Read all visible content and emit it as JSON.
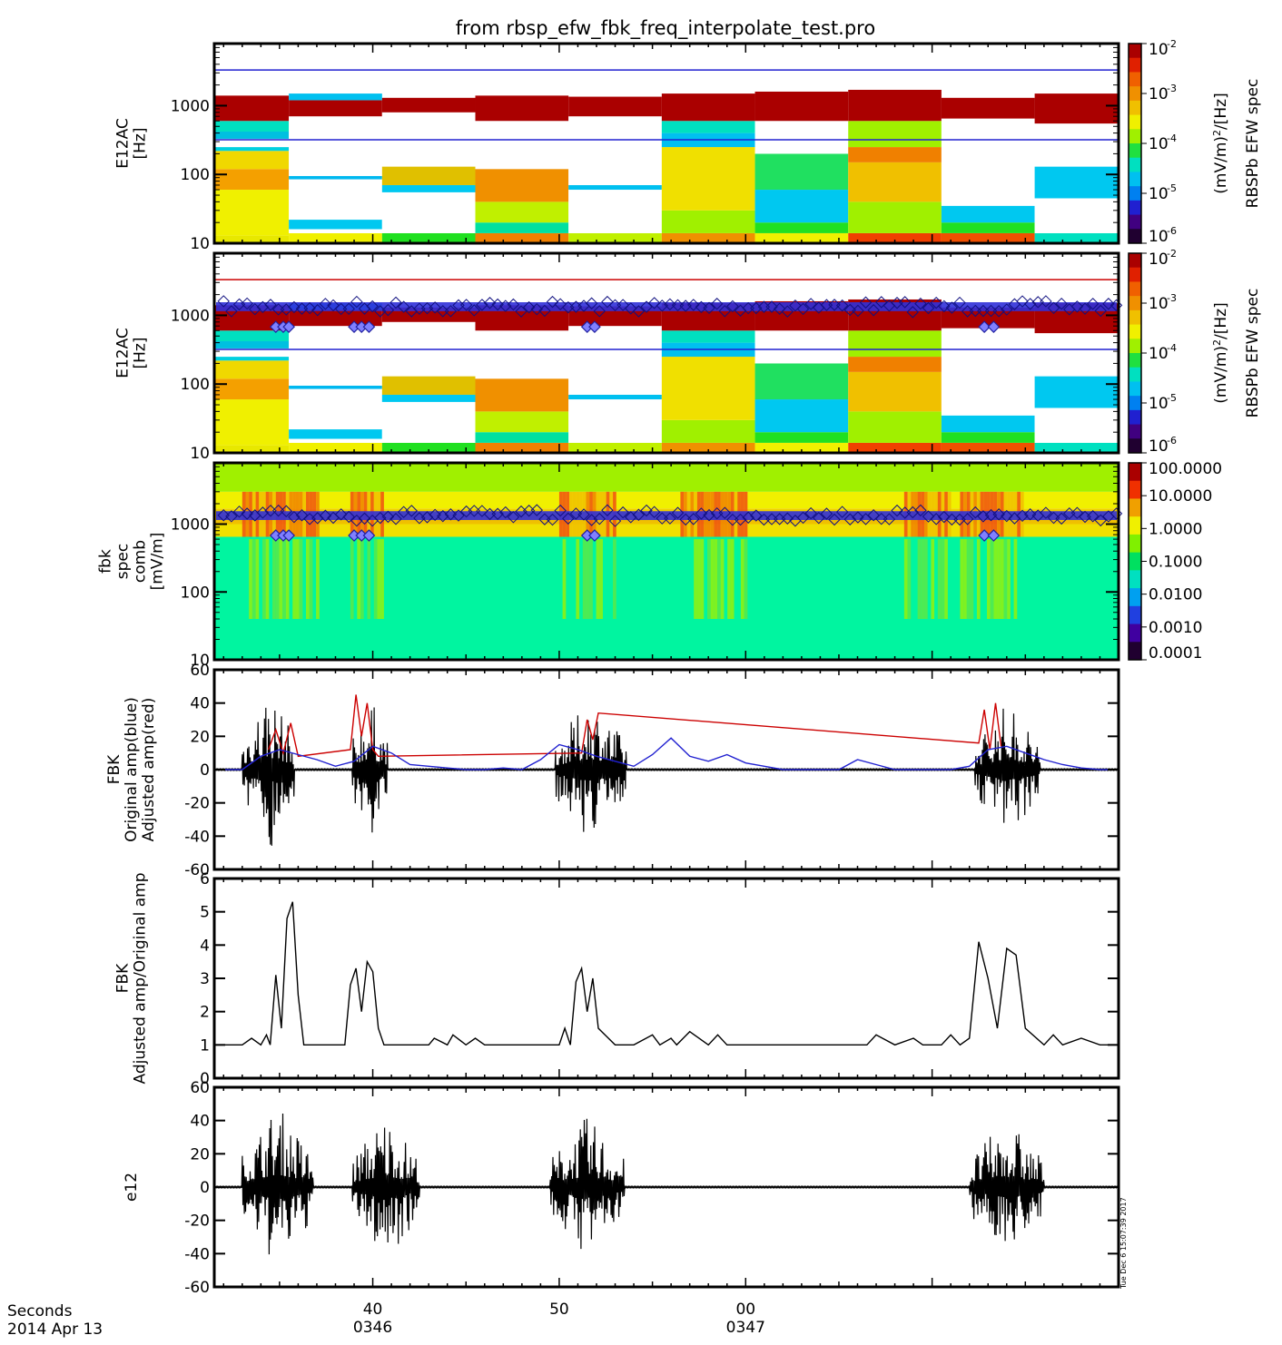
{
  "title": "from  rbsp_efw_fbk_freq_interpolate_test.pro",
  "timestamp_note": "Tue Dec  6 15:07:39 2017",
  "x_axis": {
    "units_label": "Seconds",
    "date_label": "2014 Apr 13",
    "ticks": [
      {
        "t": 40,
        "major": "40",
        "minor": "0346"
      },
      {
        "t": 50,
        "major": "50",
        "minor": ""
      },
      {
        "t": 60,
        "major": "00",
        "minor": "0347"
      }
    ],
    "range": [
      31.5,
      80.0
    ]
  },
  "colors": {
    "blue_line": "#2020d0",
    "red_line": "#cc0000",
    "black_line": "#000000",
    "fbk_background": "#00f5a0"
  },
  "colorbars": [
    {
      "label_parts": [
        "(mV/m)",
        "2",
        "/[Hz]"
      ],
      "title": "RBSPb EFW spec",
      "ticks": [
        "10",
        "10",
        "10",
        "10",
        "10"
      ],
      "exps": [
        "-2",
        "-3",
        "-4",
        "-5",
        "-6"
      ]
    },
    {
      "label_parts": [
        "(mV/m)",
        "2",
        "/[Hz]"
      ],
      "title": "RBSPb EFW spec",
      "ticks": [
        "10",
        "10",
        "10",
        "10",
        "10"
      ],
      "exps": [
        "-2",
        "-3",
        "-4",
        "-5",
        "-6"
      ]
    },
    {
      "ticks": [
        "100.0000",
        "10.0000",
        "1.0000",
        "0.1000",
        "0.0100",
        "0.0010",
        "0.0001"
      ]
    }
  ],
  "chart_data": [
    {
      "panel": 1,
      "type": "heatmap",
      "ylabel": [
        "E12AC",
        "[Hz]"
      ],
      "y_scale": "log",
      "ylim": [
        10,
        8000
      ],
      "y_ticks": [
        "1000",
        "100",
        "10"
      ],
      "columns": [
        {
          "t0": 31.5,
          "t1": 35.5,
          "bands": [
            [
              10,
              13,
              "#e8e800"
            ],
            [
              13,
              60,
              "#f0f000"
            ],
            [
              60,
              120,
              "#f4a000"
            ],
            [
              120,
              220,
              "#f0d800"
            ],
            [
              220,
              250,
              "#00d0e0"
            ],
            [
              250,
              330,
              "#ffffff"
            ],
            [
              330,
              420,
              "#00c0e0"
            ],
            [
              420,
              600,
              "#00e0c0"
            ],
            [
              600,
              1400,
              "#aa0000"
            ]
          ]
        },
        {
          "t0": 35.5,
          "t1": 40.5,
          "bands": [
            [
              10,
              14,
              "#f0f000"
            ],
            [
              14,
              16,
              "#ffffff"
            ],
            [
              16,
              22,
              "#00c8f0"
            ],
            [
              22,
              85,
              "#ffffff"
            ],
            [
              85,
              95,
              "#00b8f0"
            ],
            [
              95,
              320,
              "#ffffff"
            ],
            [
              320,
              700,
              "#ffffff"
            ],
            [
              700,
              1200,
              "#aa0000"
            ],
            [
              1200,
              1500,
              "#00c0f0"
            ]
          ]
        },
        {
          "t0": 40.5,
          "t1": 45.5,
          "bands": [
            [
              10,
              14,
              "#20e020"
            ],
            [
              14,
              55,
              "#ffffff"
            ],
            [
              55,
              70,
              "#00c8f0"
            ],
            [
              70,
              130,
              "#e0c000"
            ],
            [
              130,
              800,
              "#ffffff"
            ],
            [
              800,
              1300,
              "#aa0000"
            ]
          ]
        },
        {
          "t0": 45.5,
          "t1": 50.5,
          "bands": [
            [
              10,
              14,
              "#f08000"
            ],
            [
              14,
              20,
              "#00e0a0"
            ],
            [
              20,
              40,
              "#c0f000"
            ],
            [
              40,
              120,
              "#f09000"
            ],
            [
              120,
              600,
              "#ffffff"
            ],
            [
              600,
              1400,
              "#aa0000"
            ]
          ]
        },
        {
          "t0": 50.5,
          "t1": 55.5,
          "bands": [
            [
              10,
              14,
              "#c0f000"
            ],
            [
              14,
              60,
              "#ffffff"
            ],
            [
              60,
              70,
              "#00c0f0"
            ],
            [
              70,
              700,
              "#ffffff"
            ],
            [
              700,
              1350,
              "#aa0000"
            ]
          ]
        },
        {
          "t0": 55.5,
          "t1": 60.5,
          "bands": [
            [
              10,
              14,
              "#f09000"
            ],
            [
              14,
              30,
              "#a0f000"
            ],
            [
              30,
              250,
              "#f0e000"
            ],
            [
              250,
              400,
              "#00c0f0"
            ],
            [
              400,
              600,
              "#00e0c0"
            ],
            [
              600,
              1500,
              "#aa0000"
            ]
          ]
        },
        {
          "t0": 60.5,
          "t1": 65.5,
          "bands": [
            [
              10,
              14,
              "#f0f000"
            ],
            [
              14,
              20,
              "#20e020"
            ],
            [
              20,
              60,
              "#00c8f0"
            ],
            [
              60,
              200,
              "#20e060"
            ],
            [
              200,
              600,
              "#ffffff"
            ],
            [
              600,
              1600,
              "#aa0000"
            ]
          ]
        },
        {
          "t0": 65.5,
          "t1": 70.5,
          "bands": [
            [
              10,
              14,
              "#f04000"
            ],
            [
              14,
              40,
              "#a0f000"
            ],
            [
              40,
              150,
              "#f0c000"
            ],
            [
              150,
              250,
              "#f08000"
            ],
            [
              250,
              600,
              "#a0f000"
            ],
            [
              600,
              1700,
              "#aa0000"
            ]
          ]
        },
        {
          "t0": 70.5,
          "t1": 75.5,
          "bands": [
            [
              10,
              14,
              "#f05000"
            ],
            [
              14,
              20,
              "#20e020"
            ],
            [
              20,
              35,
              "#00c8f0"
            ],
            [
              35,
              650,
              "#ffffff"
            ],
            [
              650,
              1300,
              "#aa0000"
            ]
          ]
        },
        {
          "t0": 75.5,
          "t1": 80.0,
          "bands": [
            [
              10,
              14,
              "#00e0c0"
            ],
            [
              14,
              45,
              "#ffffff"
            ],
            [
              45,
              130,
              "#00c8f0"
            ],
            [
              130,
              550,
              "#ffffff"
            ],
            [
              550,
              1500,
              "#aa0000"
            ]
          ]
        }
      ],
      "overlay_lines": [
        {
          "y": 3300,
          "color": "#2020d0"
        },
        {
          "y": 320,
          "color": "#2020d0"
        }
      ]
    },
    {
      "panel": 2,
      "type": "heatmap",
      "ylabel": [
        "E12AC",
        "[Hz]"
      ],
      "y_scale": "log",
      "ylim": [
        10,
        8000
      ],
      "y_ticks": [
        "1000",
        "100",
        "10"
      ],
      "same_columns_as_panel": 1,
      "overlay_lines": [
        {
          "y": 3300,
          "color": "#cc0000"
        },
        {
          "y": 320,
          "color": "#2020d0"
        }
      ],
      "diamond_band": {
        "y_low": 1150,
        "y_high": 1550,
        "color": "#2020d0"
      },
      "diamond_low_times": [
        34.8,
        35.2,
        35.5,
        39.0,
        39.4,
        39.8,
        51.5,
        51.9,
        72.8,
        73.3
      ],
      "diamond_low_y": 680
    },
    {
      "panel": 3,
      "type": "heatmap",
      "ylabel": [
        "fbk",
        "spec",
        "comb",
        "[mV/m]"
      ],
      "y_scale": "log",
      "ylim": [
        10,
        8000
      ],
      "y_ticks": [
        "1000",
        "100",
        "10"
      ],
      "bands": [
        [
          10,
          650,
          "#00f5a0"
        ],
        [
          650,
          1000,
          "#f0e000"
        ],
        [
          1000,
          1400,
          "#f0c000"
        ],
        [
          1400,
          1700,
          "#f0d000"
        ],
        [
          1700,
          3000,
          "#f0f000"
        ],
        [
          3000,
          8000,
          "#a0f000"
        ]
      ],
      "active_intervals": [
        [
          33.0,
          37.0
        ],
        [
          38.8,
          40.5
        ],
        [
          50.0,
          53.0
        ],
        [
          56.5,
          60.0
        ],
        [
          68.5,
          71.0
        ],
        [
          71.5,
          74.8
        ]
      ]
    },
    {
      "panel": 4,
      "type": "line",
      "ylabel": [
        "FBK",
        "Original amp(blue)",
        "Adjusted amp(red)"
      ],
      "ylim": [
        -60,
        60
      ],
      "y_ticks": [
        "60",
        "40",
        "20",
        "0",
        "-20",
        "-40",
        "-60"
      ],
      "series": [
        {
          "color": "black",
          "bursts": [
            [
              33.0,
              35.8,
              50
            ],
            [
              38.9,
              40.8,
              45
            ],
            [
              49.8,
              53.6,
              43
            ],
            [
              72.3,
              75.8,
              42
            ]
          ]
        },
        {
          "color": "blue",
          "x": [
            31.5,
            33,
            34,
            35,
            36,
            37,
            38,
            39,
            40,
            41,
            42,
            43,
            44,
            45,
            46,
            47,
            48,
            49,
            50,
            51,
            52,
            53,
            54,
            55,
            56,
            57,
            58,
            59,
            60,
            61,
            62,
            63,
            64,
            65,
            66,
            67,
            68,
            69,
            70,
            71,
            72,
            73,
            74,
            75,
            76,
            77,
            78,
            79,
            80
          ],
          "y": [
            0,
            0,
            8,
            12,
            9,
            6,
            2,
            5,
            14,
            10,
            3,
            2,
            1,
            0,
            0,
            1,
            0,
            6,
            15,
            12,
            8,
            5,
            2,
            9,
            19,
            8,
            5,
            9,
            4,
            2,
            0,
            0,
            0,
            0,
            6,
            3,
            0,
            0,
            0,
            0,
            2,
            12,
            14,
            10,
            6,
            3,
            1,
            0,
            0
          ]
        },
        {
          "color": "red",
          "x": [
            34.4,
            34.8,
            35.2,
            35.6,
            36.0,
            38.8,
            39.1,
            39.4,
            39.7,
            40.0,
            40.3,
            51.2,
            51.5,
            51.8,
            52.1,
            72.5,
            72.8,
            73.1,
            73.4,
            73.7
          ],
          "y": [
            12,
            24,
            10,
            28,
            8,
            12,
            45,
            20,
            40,
            12,
            8,
            10,
            30,
            18,
            34,
            16,
            36,
            12,
            40,
            14
          ]
        }
      ]
    },
    {
      "panel": 5,
      "type": "line",
      "ylabel": [
        "FBK",
        "Adjusted amp/Original amp"
      ],
      "ylim": [
        0,
        6
      ],
      "y_ticks": [
        "6",
        "5",
        "4",
        "3",
        "2",
        "1",
        "0"
      ],
      "series": [
        {
          "color": "black",
          "x": [
            31.5,
            32.5,
            33.0,
            33.5,
            34.0,
            34.3,
            34.5,
            34.8,
            35.1,
            35.4,
            35.7,
            36.0,
            36.3,
            38.5,
            38.8,
            39.1,
            39.4,
            39.7,
            40.0,
            40.3,
            40.6,
            41.0,
            43.0,
            43.3,
            44.0,
            44.3,
            45.0,
            45.5,
            46.0,
            47.0,
            49.0,
            50.0,
            50.3,
            50.6,
            50.9,
            51.2,
            51.5,
            51.8,
            52.1,
            53.0,
            54.0,
            55.0,
            55.4,
            56.0,
            56.3,
            57.0,
            58.0,
            58.5,
            59.0,
            60.0,
            62.0,
            64.0,
            65.0,
            66.0,
            66.5,
            67.0,
            68.0,
            69.0,
            69.5,
            70.5,
            71.0,
            71.5,
            72.0,
            72.5,
            73.0,
            73.5,
            74.0,
            74.5,
            75.0,
            76.0,
            76.5,
            77.0,
            78.0,
            79.0,
            80.0
          ],
          "y": [
            1,
            1,
            1,
            1.2,
            1,
            1.3,
            1,
            3.1,
            1.5,
            4.8,
            5.3,
            2.5,
            1,
            1,
            2.8,
            3.3,
            2.0,
            3.5,
            3.2,
            1.5,
            1,
            1,
            1,
            1.2,
            1,
            1.3,
            1,
            1.2,
            1,
            1,
            1,
            1,
            1.5,
            1,
            2.9,
            3.3,
            2.0,
            3.0,
            1.5,
            1,
            1,
            1.3,
            1,
            1.2,
            1,
            1.4,
            1,
            1.3,
            1,
            1,
            1,
            1,
            1,
            1,
            1,
            1.3,
            1,
            1.2,
            1,
            1,
            1.3,
            1,
            1.2,
            4.1,
            3.0,
            1.5,
            3.9,
            3.7,
            1.5,
            1,
            1.3,
            1,
            1.2,
            1,
            1
          ]
        }
      ]
    },
    {
      "panel": 6,
      "type": "line",
      "ylabel": [
        "e12"
      ],
      "ylim": [
        -60,
        60
      ],
      "y_ticks": [
        "60",
        "40",
        "20",
        "0",
        "-20",
        "-40",
        "-60"
      ],
      "series": [
        {
          "color": "black",
          "bursts": [
            [
              33.0,
              36.8,
              50
            ],
            [
              38.9,
              42.5,
              45
            ],
            [
              49.5,
              53.5,
              43
            ],
            [
              72.0,
              76.0,
              42
            ]
          ]
        }
      ]
    }
  ]
}
